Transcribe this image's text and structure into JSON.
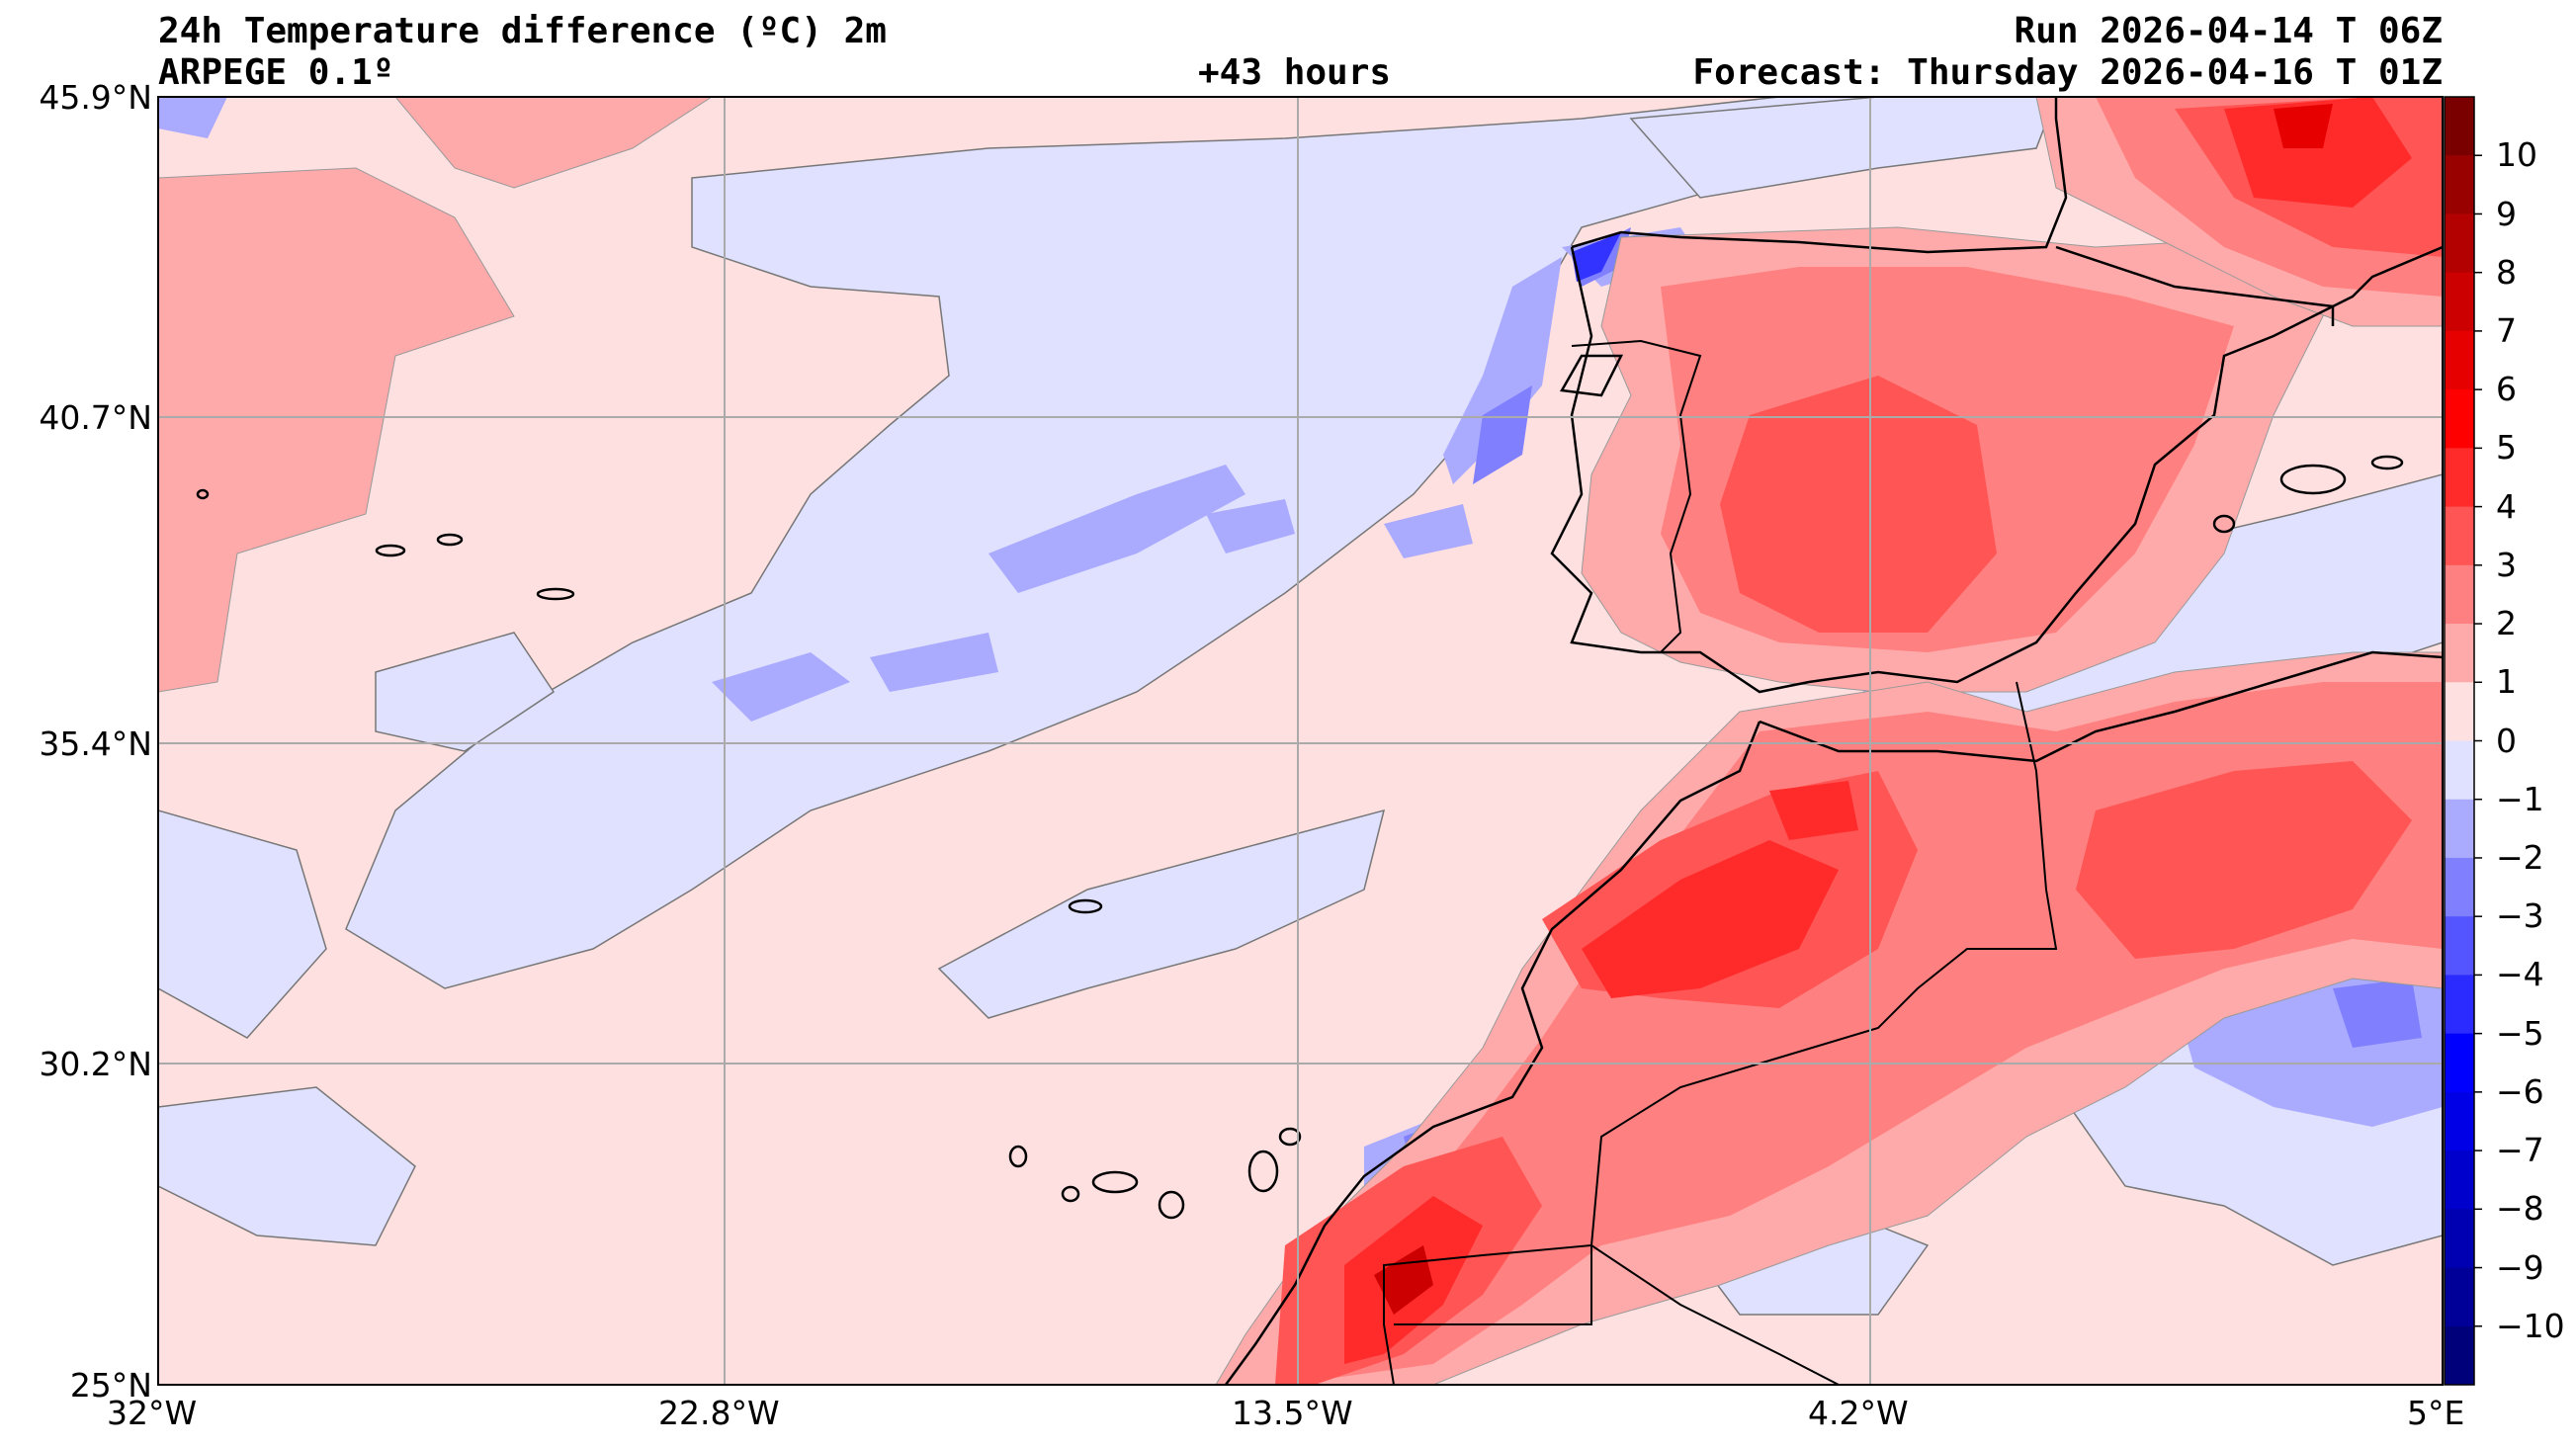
{
  "header": {
    "title": "24h Temperature difference (ºC) 2m",
    "model": "ARPEGE 0.1º",
    "lead_time": "+43 hours",
    "run": "Run 2026-04-14 T 06Z",
    "forecast": "Forecast: Thursday 2026-04-16 T 01Z"
  },
  "map": {
    "lat_ticks": [
      "45.9°N",
      "40.7°N",
      "35.4°N",
      "30.2°N",
      "25°N"
    ],
    "lon_ticks": [
      "32°W",
      "22.8°W",
      "13.5°W",
      "4.2°W",
      "5°E"
    ],
    "lat_range": [
      25,
      45.9
    ],
    "lon_range": [
      -32,
      5
    ],
    "grid": true
  },
  "colorbar": {
    "labels": [
      "10",
      "9",
      "8",
      "7",
      "6",
      "5",
      "4",
      "3",
      "2",
      "1",
      "0",
      "−1",
      "−2",
      "−3",
      "−4",
      "−5",
      "−6",
      "−7",
      "−8",
      "−9",
      "−10"
    ],
    "colors": [
      "#7a0000",
      "#990000",
      "#b30000",
      "#cc0000",
      "#e60000",
      "#ff0000",
      "#ff2b2b",
      "#ff5555",
      "#ff8080",
      "#ffaaaa",
      "#ffe0e0",
      "#e0e0ff",
      "#aaaaff",
      "#8080ff",
      "#5555ff",
      "#2b2bff",
      "#0000ff",
      "#0000e6",
      "#0000cc",
      "#0000b3",
      "#000099",
      "#00007a"
    ]
  }
}
